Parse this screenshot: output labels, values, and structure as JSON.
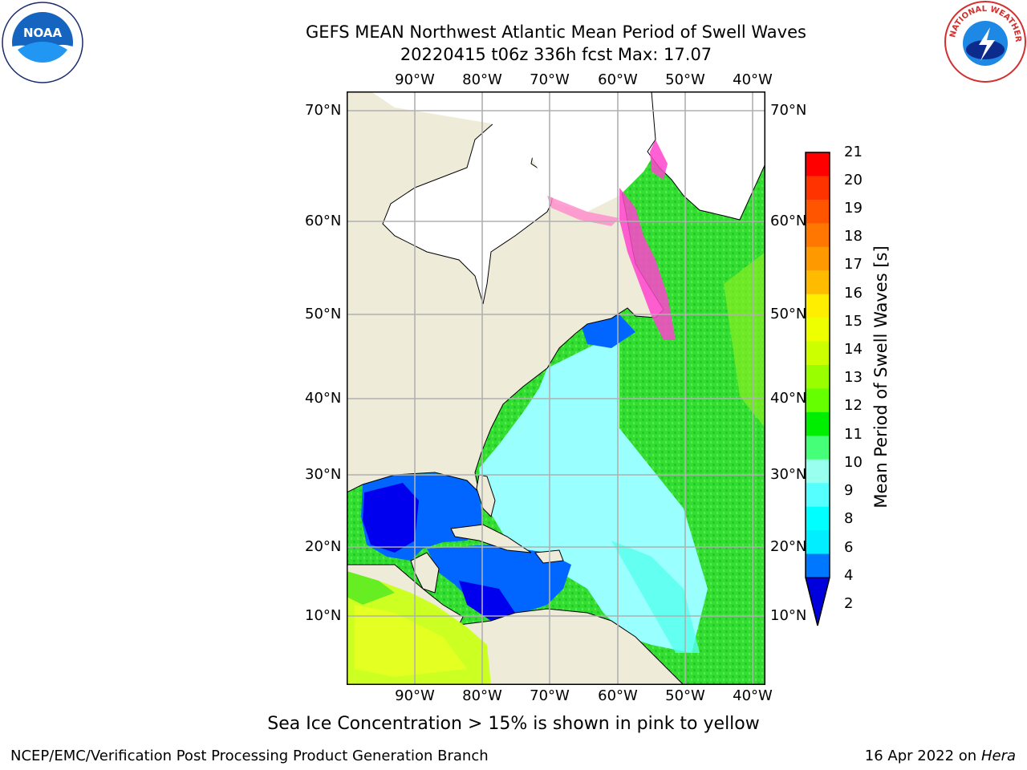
{
  "title_line1": "GEFS MEAN Northwest Atlantic Mean Period of Swell Waves",
  "title_line2": "20220415 t06z 336h fcst   Max: 17.07",
  "lon_labels": [
    "90°W",
    "80°W",
    "70°W",
    "60°W",
    "50°W",
    "40°W"
  ],
  "lat_labels": [
    "70°N",
    "60°N",
    "50°N",
    "40°N",
    "30°N",
    "20°N",
    "10°N"
  ],
  "colorbar": {
    "label": "Mean Period of Swell Waves [s]",
    "ticks": [
      "21",
      "20",
      "19",
      "18",
      "17",
      "16",
      "15",
      "14",
      "13",
      "12",
      "11",
      "10",
      "9",
      "8",
      "6",
      "4",
      "2"
    ],
    "colors": [
      "#ff0000",
      "#ff3300",
      "#ff5500",
      "#ff7700",
      "#ff9900",
      "#ffbb00",
      "#ffee00",
      "#eeff00",
      "#ccff00",
      "#99ff00",
      "#66ff00",
      "#00ee00",
      "#44ff77",
      "#99ffee",
      "#55ffff",
      "#00ffff",
      "#00eeff",
      "#0077ff"
    ],
    "extend_color": "#0000dd"
  },
  "ice_note": "Sea Ice Concentration > 15% is shown in pink to yellow",
  "footer_left": "NCEP/EMC/Verification Post Processing Product Generation Branch",
  "footer_date": "16 Apr 2022 on",
  "footer_host": "Hera",
  "logos": {
    "left": "noaa-logo",
    "right": "nws-logo"
  },
  "logo_text": {
    "noaa": "NOAA",
    "nws": "NATIONAL WEATHER SERVICE"
  },
  "map_colors": {
    "land": "#eeebd9",
    "grid": "#b0b0b0",
    "ocean_green": "#33dd33",
    "ocean_cyan": "#99ffff",
    "gulf_blue": "#0066ff",
    "deep_blue": "#0000ee",
    "ice_pink": "#ff44cc"
  }
}
